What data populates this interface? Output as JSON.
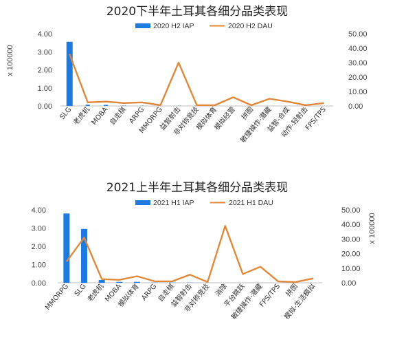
{
  "colors": {
    "iap": "#1f7ae0",
    "dau": "#e0883a",
    "axis": "#bdbdbd"
  },
  "chart_data": [
    {
      "type": "bar",
      "title": "2020下半年土耳其各细分品类表现",
      "legend_position": "top",
      "categories": [
        "SLG",
        "老虎机",
        "MOBA",
        "自走棋",
        "ARPG",
        "MMORPG",
        "益智射击",
        "非对称竞技",
        "模拟体育",
        "模拟经营",
        "拼图",
        "敏捷操作-潜藏",
        "益智-合成",
        "动作-轻射击",
        "FPS/TPS"
      ],
      "series": [
        {
          "name": "2020 H2 IAP",
          "kind": "bar",
          "axis": "left",
          "values": [
            3.55,
            0.07,
            0.06,
            0.02,
            0.01,
            0.0,
            0.01,
            0.01,
            0.0,
            0.0,
            0.0,
            0.0,
            0.0,
            0.0,
            0.0
          ]
        },
        {
          "name": "2020 H2 DAU",
          "kind": "line",
          "axis": "right",
          "values": [
            36,
            2.5,
            3,
            2,
            2.5,
            0.5,
            30,
            0.5,
            0.5,
            6,
            0.5,
            5,
            3,
            0.5,
            2
          ]
        }
      ],
      "ylabel": "x 100000",
      "ylim_left": [
        0,
        4
      ],
      "yticks_left": [
        "0.00",
        "1.00",
        "2.00",
        "3.00",
        "4.00"
      ],
      "ylim_right": [
        0,
        50
      ],
      "yticks_right": [
        "0.00",
        "10.00",
        "20.00",
        "30.00",
        "40.00",
        "50.00"
      ]
    },
    {
      "type": "bar",
      "title": "2021上半年土耳其各细分品类表现",
      "legend_position": "top",
      "categories": [
        "MMORPG",
        "SLG",
        "老虎机",
        "MOBA",
        "模拟体育",
        "ARPG",
        "自走棋",
        "益智射击",
        "非对称竞技",
        "消除",
        "平台跳跃",
        "敏捷操作-潜藏",
        "FPS/TPS",
        "拼图",
        "模拟-生活模拟"
      ],
      "series": [
        {
          "name": "2021 H1 IAP",
          "kind": "bar",
          "axis": "left",
          "values": [
            3.8,
            2.95,
            0.15,
            0.05,
            0.05,
            0.01,
            0.01,
            0.01,
            0.0,
            0.0,
            0.0,
            0.0,
            0.0,
            0.0,
            0.0
          ]
        },
        {
          "name": "2021 H1 DAU",
          "kind": "line",
          "axis": "right",
          "values": [
            14.5,
            31,
            2.5,
            2,
            4.5,
            1,
            1,
            5.5,
            0.5,
            39,
            6,
            11,
            1,
            0.5,
            3
          ]
        }
      ],
      "ylabel_right": "x 100000",
      "ylim_left": [
        0,
        4
      ],
      "yticks_left": [
        "0.00",
        "1.00",
        "2.00",
        "3.00",
        "4.00"
      ],
      "ylim_right": [
        0,
        50
      ],
      "yticks_right": [
        "0.00",
        "10.00",
        "20.00",
        "30.00",
        "40.00",
        "50.00"
      ]
    }
  ]
}
